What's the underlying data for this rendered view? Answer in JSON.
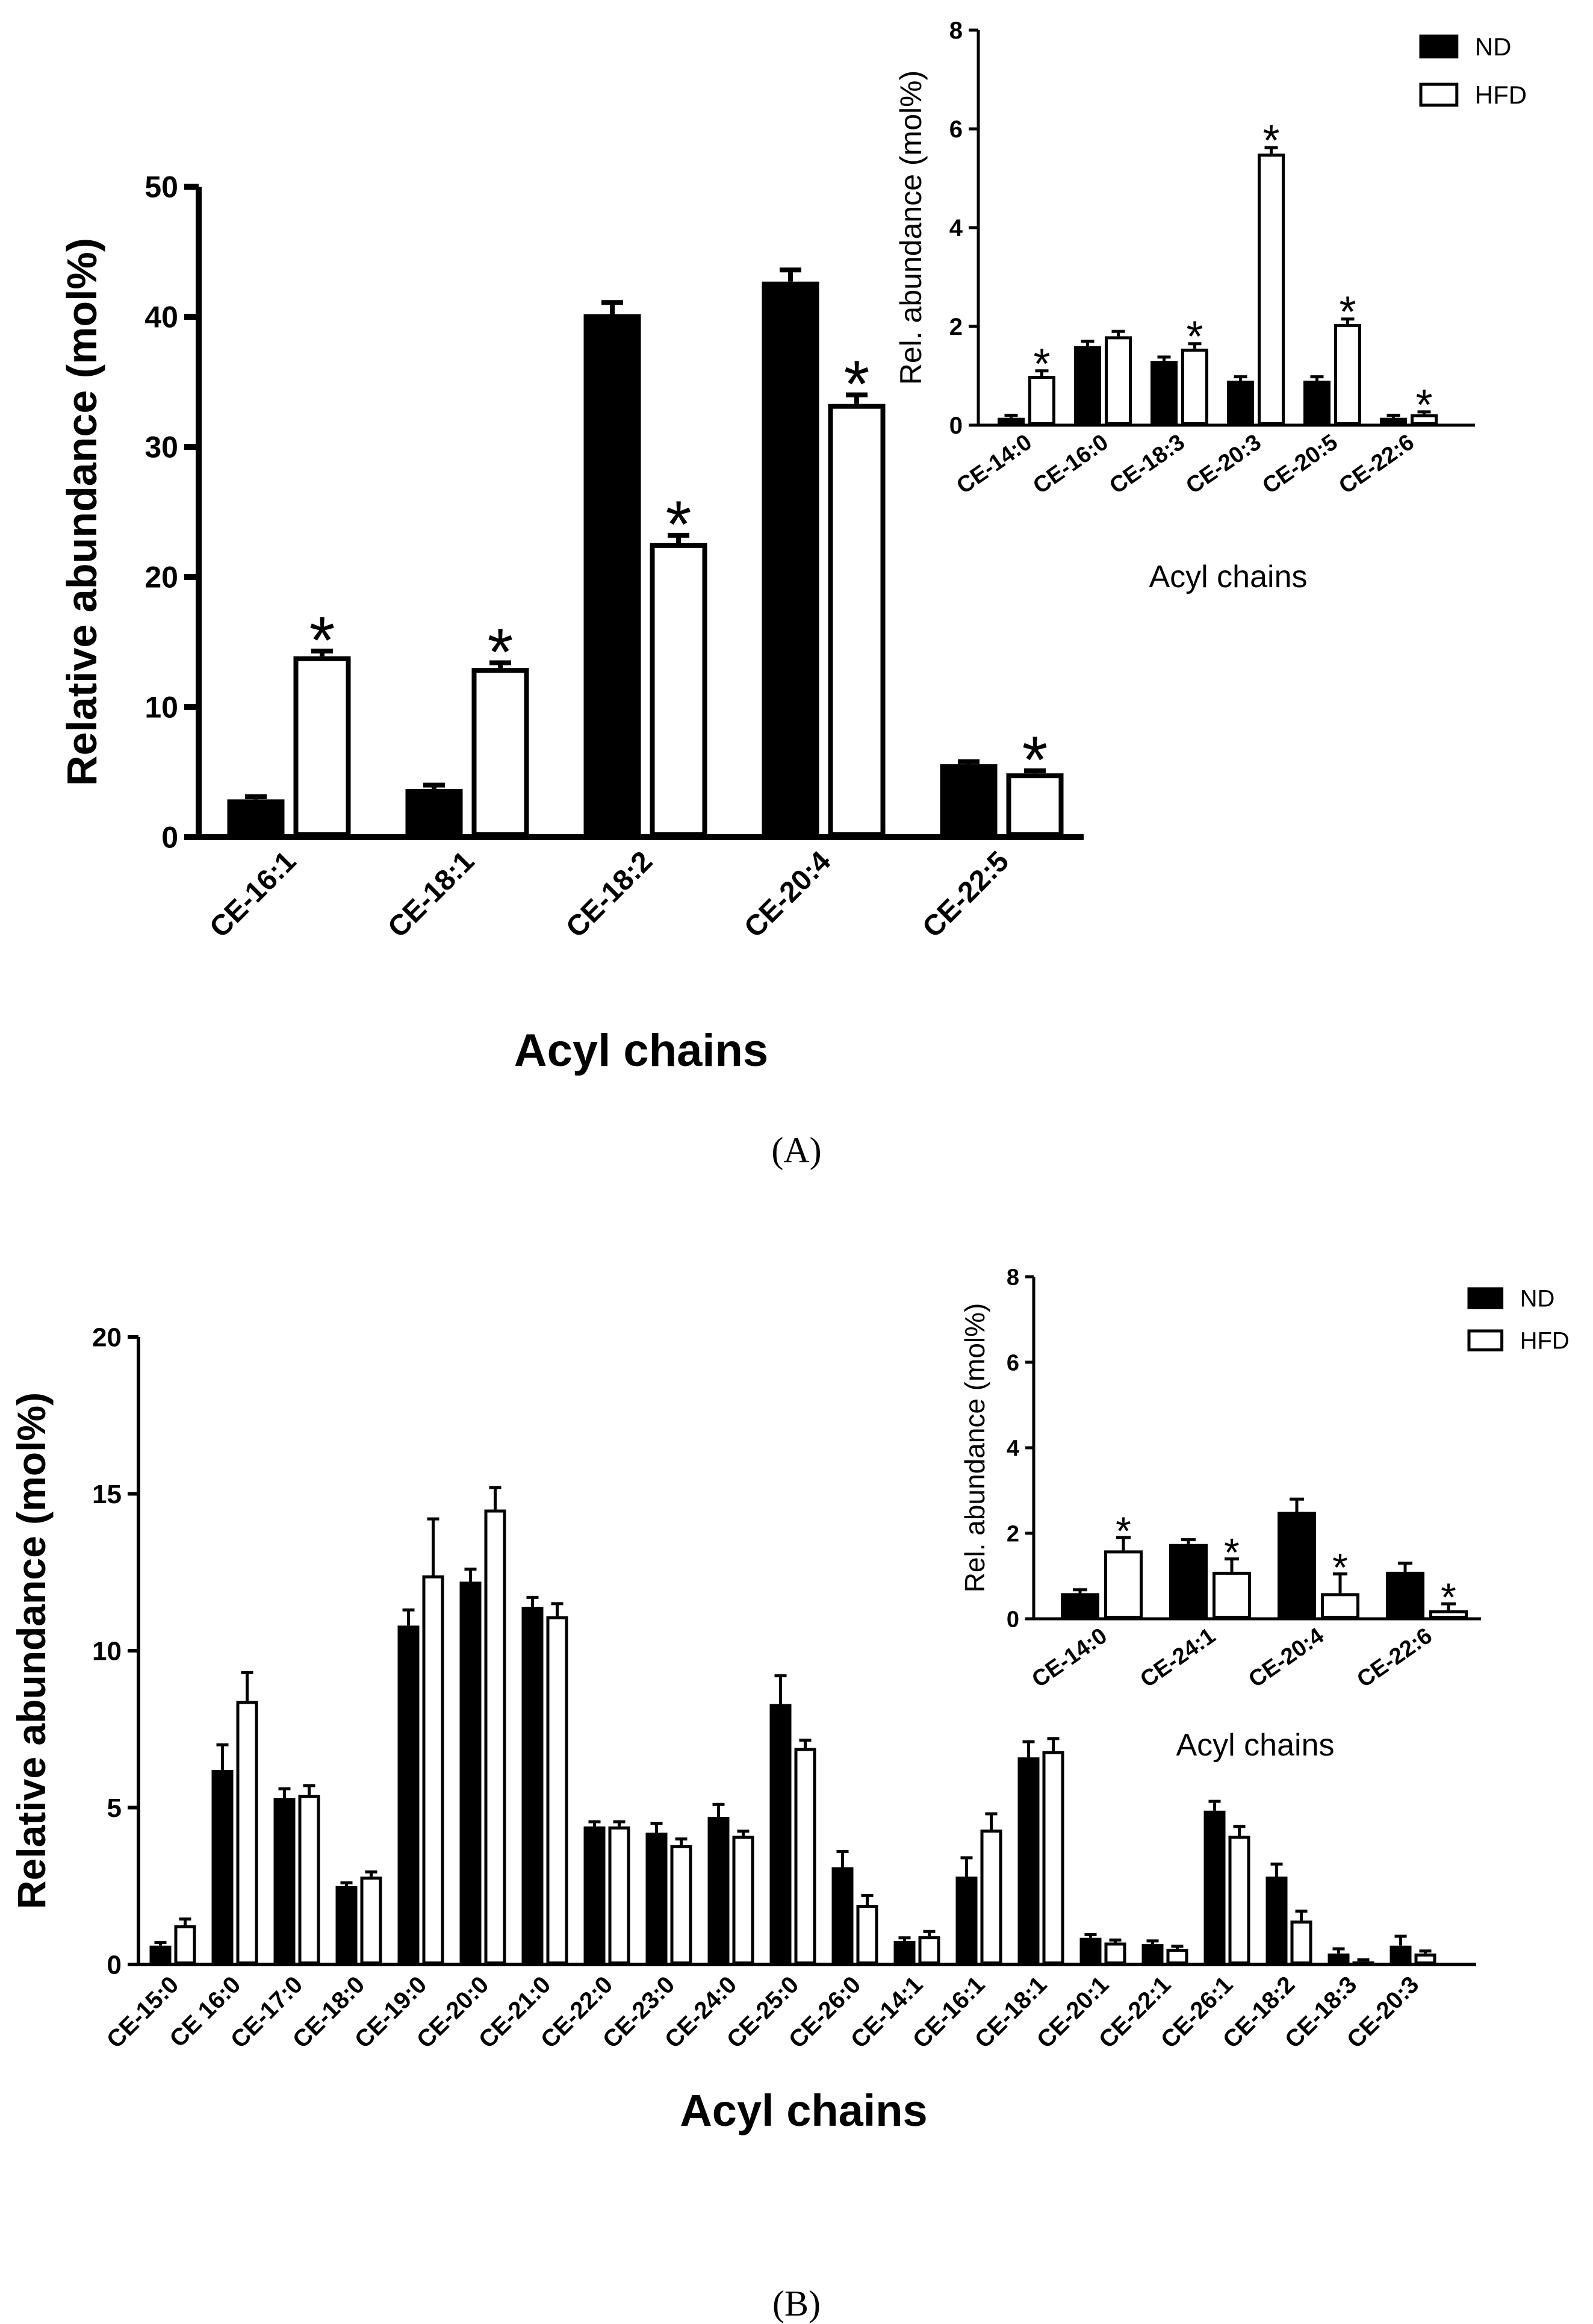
{
  "chart_data": [
    {
      "id": "A-main",
      "type": "bar",
      "panel_label": "A",
      "ylabel": "Relative abundance (mol%)",
      "xlabel": "Acyl chains",
      "ylim": [
        0,
        50
      ],
      "yticks": [
        0,
        10,
        20,
        30,
        40,
        50
      ],
      "categories": [
        "CE-16:1",
        "CE-18:1",
        "CE-18:2",
        "CE-20:4",
        "CE-22:5"
      ],
      "series": [
        {
          "name": "ND",
          "values": [
            2.9,
            3.7,
            40.2,
            42.7,
            5.6
          ],
          "errors": [
            0.2,
            0.3,
            0.9,
            0.9,
            0.2
          ]
        },
        {
          "name": "HFD",
          "values": [
            13.9,
            13.0,
            22.6,
            33.3,
            4.9
          ],
          "errors": [
            0.4,
            0.4,
            0.6,
            0.7,
            0.2
          ]
        }
      ],
      "significance": [
        {
          "category": "CE-16:1",
          "series": "HFD",
          "label": "*"
        },
        {
          "category": "CE-18:1",
          "series": "HFD",
          "label": "*"
        },
        {
          "category": "CE-18:2",
          "series": "HFD",
          "label": "*"
        },
        {
          "category": "CE-20:4",
          "series": "HFD",
          "label": "*"
        },
        {
          "category": "CE-22:5",
          "series": "HFD",
          "label": "*"
        }
      ]
    },
    {
      "id": "A-inset",
      "type": "bar",
      "panel_label": "A",
      "ylabel": "Rel. abundance (mol%)",
      "xlabel": "Acyl chains",
      "ylim": [
        0,
        8
      ],
      "yticks": [
        0,
        2,
        4,
        6,
        8
      ],
      "categories": [
        "CE-14:0",
        "CE-16:0",
        "CE-18:3",
        "CE-20:3",
        "CE-20:5",
        "CE-22:6"
      ],
      "legend": [
        "ND",
        "HFD"
      ],
      "series": [
        {
          "name": "ND",
          "values": [
            0.15,
            1.6,
            1.3,
            0.9,
            0.9,
            0.15
          ],
          "errors": [
            0.05,
            0.1,
            0.08,
            0.08,
            0.08,
            0.05
          ]
        },
        {
          "name": "HFD",
          "values": [
            1.0,
            1.8,
            1.55,
            5.5,
            2.05,
            0.22
          ],
          "errors": [
            0.1,
            0.1,
            0.1,
            0.12,
            0.1,
            0.05
          ]
        }
      ],
      "significance": [
        {
          "category": "CE-14:0",
          "series": "HFD",
          "label": "*"
        },
        {
          "category": "CE-18:3",
          "series": "HFD",
          "label": "*"
        },
        {
          "category": "CE-20:3",
          "series": "HFD",
          "label": "*"
        },
        {
          "category": "CE-20:5",
          "series": "HFD",
          "label": "*"
        },
        {
          "category": "CE-22:6",
          "series": "HFD",
          "label": "*"
        }
      ]
    },
    {
      "id": "B-main",
      "type": "bar",
      "panel_label": "B",
      "ylabel": "Relative abundance (mol%)",
      "xlabel": "Acyl chains",
      "ylim": [
        0,
        20
      ],
      "yticks": [
        0,
        5,
        10,
        15,
        20
      ],
      "categories": [
        "CE-15:0",
        "CE 16:0",
        "CE-17:0",
        "CE-18:0",
        "CE-19:0",
        "CE-20:0",
        "CE-21:0",
        "CE-22:0",
        "CE-23:0",
        "CE-24:0",
        "CE-25:0",
        "CE-26:0",
        "CE-14:1",
        "CE-16:1",
        "CE-18:1",
        "CE-20:1",
        "CE-22:1",
        "CE-26:1",
        "CE-18:2",
        "CE-18:3",
        "CE-20:3"
      ],
      "series": [
        {
          "name": "ND",
          "values": [
            0.6,
            6.2,
            5.3,
            2.5,
            10.8,
            12.2,
            11.4,
            4.4,
            4.2,
            4.7,
            8.3,
            3.1,
            0.75,
            2.8,
            6.6,
            0.85,
            0.65,
            4.9,
            2.8,
            0.35,
            0.6
          ],
          "errors": [
            0.1,
            0.8,
            0.3,
            0.1,
            0.5,
            0.4,
            0.3,
            0.15,
            0.3,
            0.4,
            0.9,
            0.5,
            0.1,
            0.6,
            0.5,
            0.1,
            0.1,
            0.3,
            0.4,
            0.15,
            0.3
          ]
        },
        {
          "name": "HFD",
          "values": [
            1.25,
            8.4,
            5.4,
            2.8,
            12.4,
            14.5,
            11.1,
            4.4,
            3.8,
            4.1,
            6.9,
            1.9,
            0.9,
            4.3,
            6.8,
            0.7,
            0.5,
            4.1,
            1.4,
            0.1,
            0.35
          ],
          "errors": [
            0.2,
            0.9,
            0.3,
            0.15,
            1.8,
            0.7,
            0.4,
            0.15,
            0.2,
            0.15,
            0.25,
            0.3,
            0.15,
            0.5,
            0.4,
            0.08,
            0.08,
            0.3,
            0.3,
            0.05,
            0.08
          ]
        }
      ]
    },
    {
      "id": "B-inset",
      "type": "bar",
      "panel_label": "B",
      "ylabel": "Rel. abundance (mol%)",
      "xlabel": "Acyl chains",
      "ylim": [
        0,
        8
      ],
      "yticks": [
        0,
        2,
        4,
        6,
        8
      ],
      "categories": [
        "CE-14:0",
        "CE-24:1",
        "CE-20:4",
        "CE-22:6"
      ],
      "legend": [
        "ND",
        "HFD"
      ],
      "series": [
        {
          "name": "ND",
          "values": [
            0.6,
            1.75,
            2.5,
            1.1
          ],
          "errors": [
            0.08,
            0.1,
            0.3,
            0.2
          ]
        },
        {
          "name": "HFD",
          "values": [
            1.6,
            1.1,
            0.6,
            0.2
          ],
          "errors": [
            0.3,
            0.3,
            0.45,
            0.15
          ]
        }
      ],
      "significance": [
        {
          "category": "CE-14:0",
          "series": "HFD",
          "label": "*"
        },
        {
          "category": "CE-24:1",
          "series": "HFD",
          "label": "*"
        },
        {
          "category": "CE-20:4",
          "series": "HFD",
          "label": "*"
        },
        {
          "category": "CE-22:6",
          "series": "HFD",
          "label": "*"
        }
      ]
    }
  ],
  "captions": {
    "a": "(A)",
    "b": "(B)"
  },
  "colors": {
    "nd_fill": "#000000",
    "hfd_fill": "#ffffff",
    "axis": "#000000"
  }
}
